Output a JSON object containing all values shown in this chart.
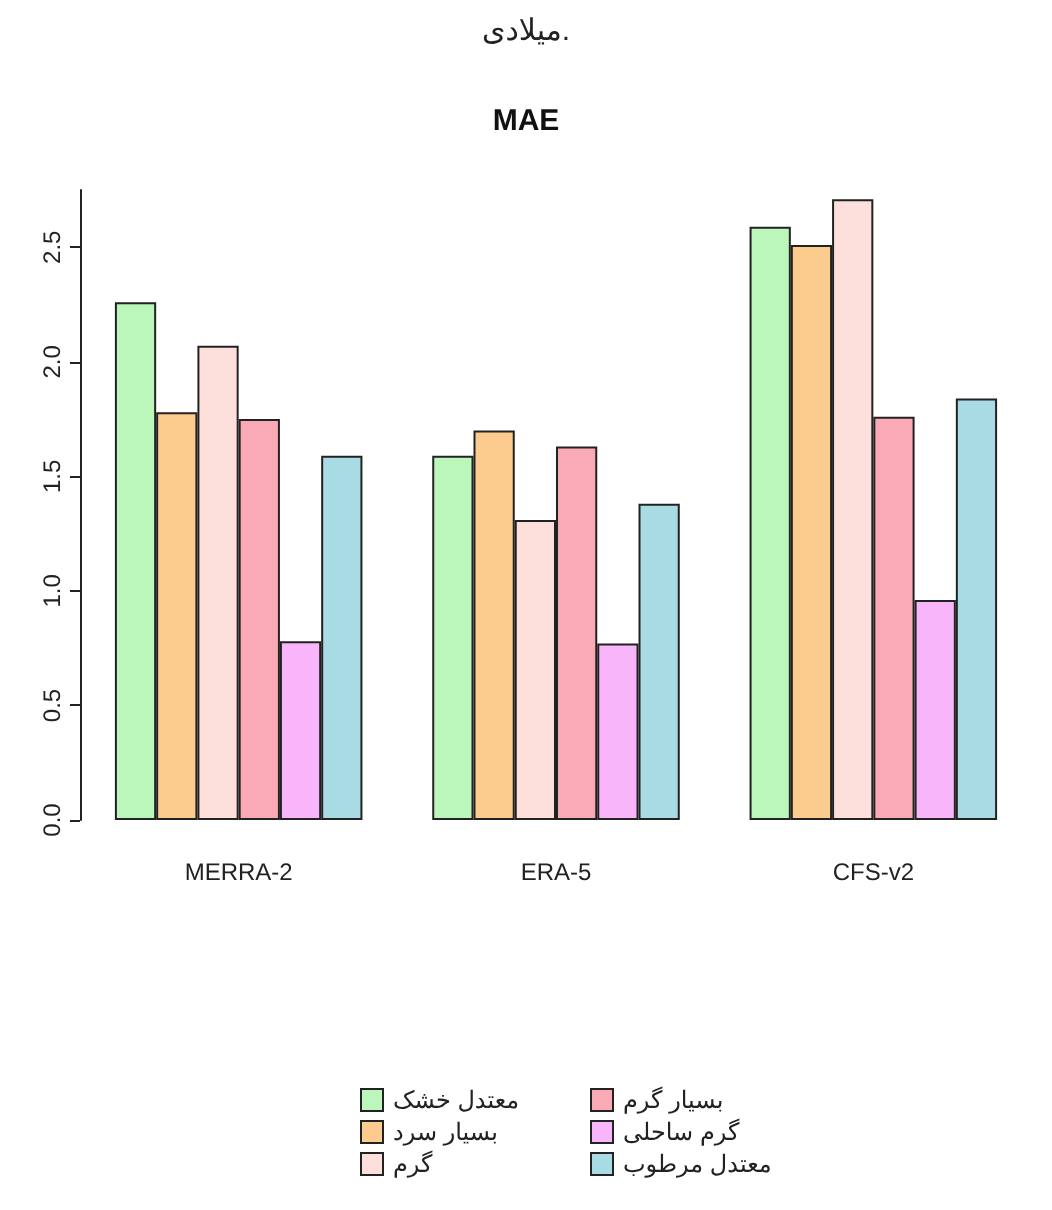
{
  "chart_data": {
    "type": "bar",
    "title": "MAE",
    "annotations": [
      "میلادی."
    ],
    "categories": [
      "MERRA-2",
      "ERA-5",
      "CFS-v2"
    ],
    "series": [
      {
        "name": "معتدل خشک",
        "color": "#bbf7bb",
        "values": [
          2.26,
          1.59,
          2.59
        ]
      },
      {
        "name": "بسیار سرد",
        "color": "#fccc8e",
        "values": [
          1.78,
          1.7,
          2.51
        ]
      },
      {
        "name": "گرم",
        "color": "#fde0dc",
        "values": [
          2.07,
          1.31,
          2.71
        ]
      },
      {
        "name": "بسیار گرم",
        "color": "#f9aab5",
        "values": [
          1.75,
          1.63,
          1.76
        ]
      },
      {
        "name": "گرم ساحلی",
        "color": "#f9b5f9",
        "values": [
          0.78,
          0.77,
          0.96
        ]
      },
      {
        "name": "معتدل مرطوب",
        "color": "#a8dbe3",
        "values": [
          1.59,
          1.38,
          1.84
        ]
      }
    ],
    "ylim": [
      0,
      2.75
    ],
    "yticks": [
      {
        "value": 0,
        "label": "0.0"
      },
      0.5,
      {
        "value": 1,
        "label": "1.0"
      },
      1.5,
      {
        "value": 2,
        "label": "2.0"
      },
      2.5
    ],
    "grid": false,
    "legend": "bottom"
  }
}
